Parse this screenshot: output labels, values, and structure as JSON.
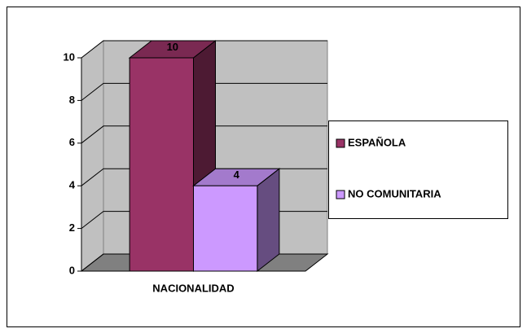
{
  "chart_data": {
    "type": "bar3d",
    "categories": [
      "NACIONALIDAD"
    ],
    "series": [
      {
        "name": "ESPAÑOLA",
        "color": "#993366",
        "values": [
          10
        ]
      },
      {
        "name": "NO COMUNITARIA",
        "color": "#CC99FF",
        "values": [
          4
        ]
      }
    ],
    "ylim": [
      0,
      10
    ],
    "yticks": [
      0,
      2,
      4,
      6,
      8,
      10
    ],
    "grid": true,
    "legend": "right"
  }
}
